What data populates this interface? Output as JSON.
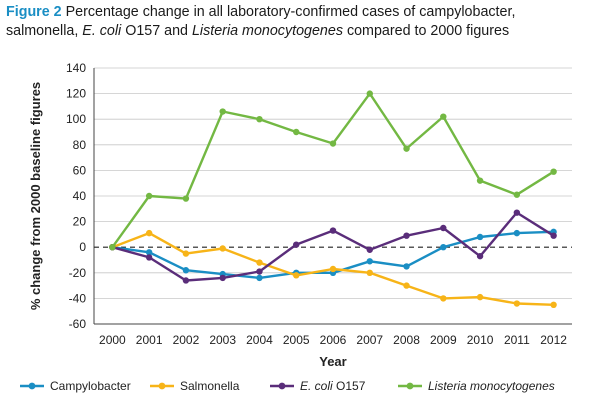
{
  "caption": {
    "figure_label": "Figure 2",
    "text_1": "Percentage change in all laboratory-confirmed cases of campylobacter, salmonella, ",
    "ecoli": "E. coli",
    "text_2": " O157 and ",
    "listeria": "Listeria monocytogenes",
    "text_3": " compared to 2000 figures"
  },
  "chart_data": {
    "type": "line",
    "xlabel": "Year",
    "ylabel": "% change from 2000 baseline figures",
    "ylim": [
      -60,
      140
    ],
    "yticks": [
      -60,
      -40,
      -20,
      0,
      20,
      40,
      60,
      80,
      100,
      120,
      140
    ],
    "x": [
      "2000",
      "2001",
      "2002",
      "2003",
      "2004",
      "2005",
      "2006",
      "2007",
      "2008",
      "2009",
      "2010",
      "2011",
      "2012"
    ],
    "baseline": 0,
    "legend_position": "bottom",
    "series": [
      {
        "name": "Campylobacter",
        "color": "#1a8ec4",
        "italic_part": "",
        "suffix": "",
        "values": [
          0,
          -4,
          -18,
          -21,
          -24,
          -20,
          -20,
          -11,
          -15,
          0,
          8,
          11,
          12
        ]
      },
      {
        "name": "Salmonella",
        "color": "#f7b418",
        "italic_part": "",
        "suffix": "",
        "values": [
          0,
          11,
          -5,
          -1,
          -12,
          -22,
          -17,
          -20,
          -30,
          -40,
          -39,
          -44,
          -45
        ]
      },
      {
        "name": "",
        "color": "#5a2d7a",
        "italic_part": "E. coli",
        "suffix": " O157",
        "values": [
          0,
          -8,
          -26,
          -24,
          -19,
          2,
          13,
          -2,
          9,
          15,
          -7,
          27,
          9
        ]
      },
      {
        "name": "",
        "color": "#73b843",
        "italic_part": "Listeria monocytogenes",
        "suffix": "",
        "values": [
          0,
          40,
          38,
          106,
          100,
          90,
          81,
          120,
          77,
          102,
          52,
          41,
          59
        ]
      }
    ]
  }
}
